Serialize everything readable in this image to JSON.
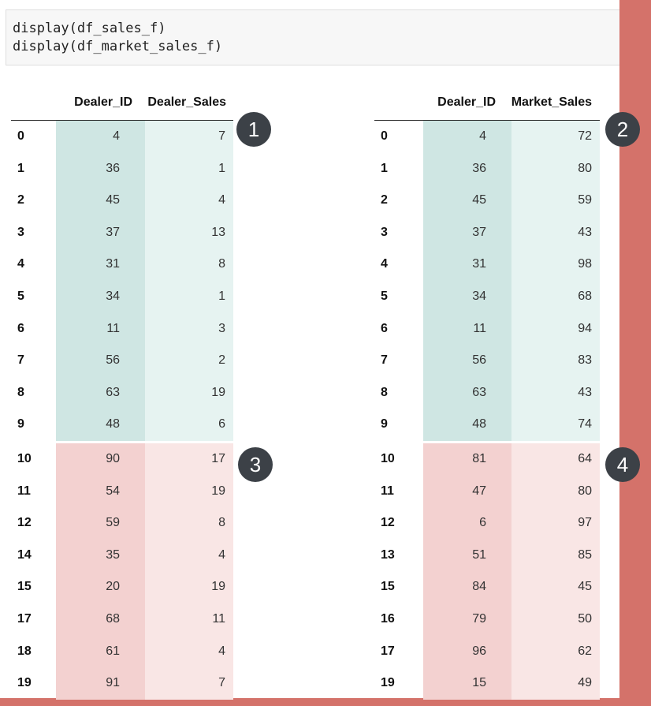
{
  "code_cell": {
    "lines": [
      "display(df_sales_f)",
      "display(df_market_sales_f)"
    ]
  },
  "colors": {
    "teal_id": "#cfe6e3",
    "teal_val": "#e6f3f1",
    "pink_id": "#f3d1d0",
    "pink_val": "#f9e6e5",
    "accent_stripe": "#d4726a",
    "badge": "#3c4147"
  },
  "tables": [
    {
      "columns": [
        "Dealer_ID",
        "Dealer_Sales"
      ],
      "rows": [
        {
          "index": "0",
          "values": [
            "4",
            "7"
          ],
          "group": "teal"
        },
        {
          "index": "1",
          "values": [
            "36",
            "1"
          ],
          "group": "teal"
        },
        {
          "index": "2",
          "values": [
            "45",
            "4"
          ],
          "group": "teal"
        },
        {
          "index": "3",
          "values": [
            "37",
            "13"
          ],
          "group": "teal"
        },
        {
          "index": "4",
          "values": [
            "31",
            "8"
          ],
          "group": "teal"
        },
        {
          "index": "5",
          "values": [
            "34",
            "1"
          ],
          "group": "teal"
        },
        {
          "index": "6",
          "values": [
            "11",
            "3"
          ],
          "group": "teal"
        },
        {
          "index": "7",
          "values": [
            "56",
            "2"
          ],
          "group": "teal"
        },
        {
          "index": "8",
          "values": [
            "63",
            "19"
          ],
          "group": "teal"
        },
        {
          "index": "9",
          "values": [
            "48",
            "6"
          ],
          "group": "teal"
        },
        {
          "index": "10",
          "values": [
            "90",
            "17"
          ],
          "group": "pink"
        },
        {
          "index": "11",
          "values": [
            "54",
            "19"
          ],
          "group": "pink"
        },
        {
          "index": "12",
          "values": [
            "59",
            "8"
          ],
          "group": "pink"
        },
        {
          "index": "14",
          "values": [
            "35",
            "4"
          ],
          "group": "pink"
        },
        {
          "index": "15",
          "values": [
            "20",
            "19"
          ],
          "group": "pink"
        },
        {
          "index": "17",
          "values": [
            "68",
            "11"
          ],
          "group": "pink"
        },
        {
          "index": "18",
          "values": [
            "61",
            "4"
          ],
          "group": "pink"
        },
        {
          "index": "19",
          "values": [
            "91",
            "7"
          ],
          "group": "pink"
        }
      ]
    },
    {
      "columns": [
        "Dealer_ID",
        "Market_Sales"
      ],
      "rows": [
        {
          "index": "0",
          "values": [
            "4",
            "72"
          ],
          "group": "teal"
        },
        {
          "index": "1",
          "values": [
            "36",
            "80"
          ],
          "group": "teal"
        },
        {
          "index": "2",
          "values": [
            "45",
            "59"
          ],
          "group": "teal"
        },
        {
          "index": "3",
          "values": [
            "37",
            "43"
          ],
          "group": "teal"
        },
        {
          "index": "4",
          "values": [
            "31",
            "98"
          ],
          "group": "teal"
        },
        {
          "index": "5",
          "values": [
            "34",
            "68"
          ],
          "group": "teal"
        },
        {
          "index": "6",
          "values": [
            "11",
            "94"
          ],
          "group": "teal"
        },
        {
          "index": "7",
          "values": [
            "56",
            "83"
          ],
          "group": "teal"
        },
        {
          "index": "8",
          "values": [
            "63",
            "43"
          ],
          "group": "teal"
        },
        {
          "index": "9",
          "values": [
            "48",
            "74"
          ],
          "group": "teal"
        },
        {
          "index": "10",
          "values": [
            "81",
            "64"
          ],
          "group": "pink"
        },
        {
          "index": "11",
          "values": [
            "47",
            "80"
          ],
          "group": "pink"
        },
        {
          "index": "12",
          "values": [
            "6",
            "97"
          ],
          "group": "pink"
        },
        {
          "index": "13",
          "values": [
            "51",
            "85"
          ],
          "group": "pink"
        },
        {
          "index": "15",
          "values": [
            "84",
            "45"
          ],
          "group": "pink"
        },
        {
          "index": "16",
          "values": [
            "79",
            "50"
          ],
          "group": "pink"
        },
        {
          "index": "17",
          "values": [
            "96",
            "62"
          ],
          "group": "pink"
        },
        {
          "index": "19",
          "values": [
            "15",
            "49"
          ],
          "group": "pink"
        }
      ]
    }
  ],
  "badges": [
    {
      "label": "1"
    },
    {
      "label": "2"
    },
    {
      "label": "3"
    },
    {
      "label": "4"
    }
  ]
}
